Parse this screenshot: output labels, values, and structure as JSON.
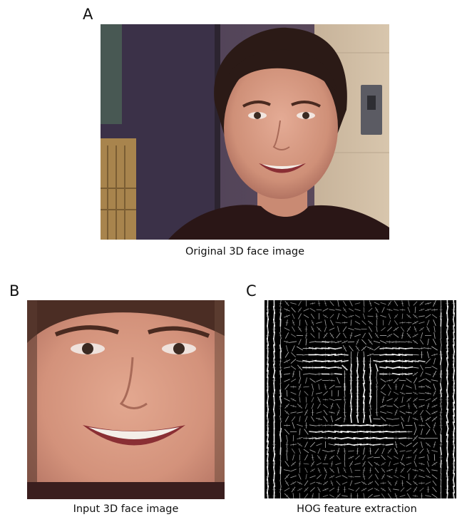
{
  "panels": {
    "a": {
      "letter": "A",
      "caption": "Original 3D face image"
    },
    "b": {
      "letter": "B",
      "caption": "Input 3D face image"
    },
    "c": {
      "letter": "C",
      "caption": "HOG feature extraction"
    }
  },
  "colors": {
    "background_wall": "#6b5a66",
    "skin": "#d79a86",
    "hair": "#2b1a16",
    "shirt": "#2a1616",
    "hog_background": "#000000",
    "hog_stroke": "#ffffff"
  },
  "images": {
    "a": "photo of smiling young woman in front of wall with light switch",
    "b": "cropped close-up of the face",
    "c": "HOG gradient orientation visualization of the face"
  }
}
